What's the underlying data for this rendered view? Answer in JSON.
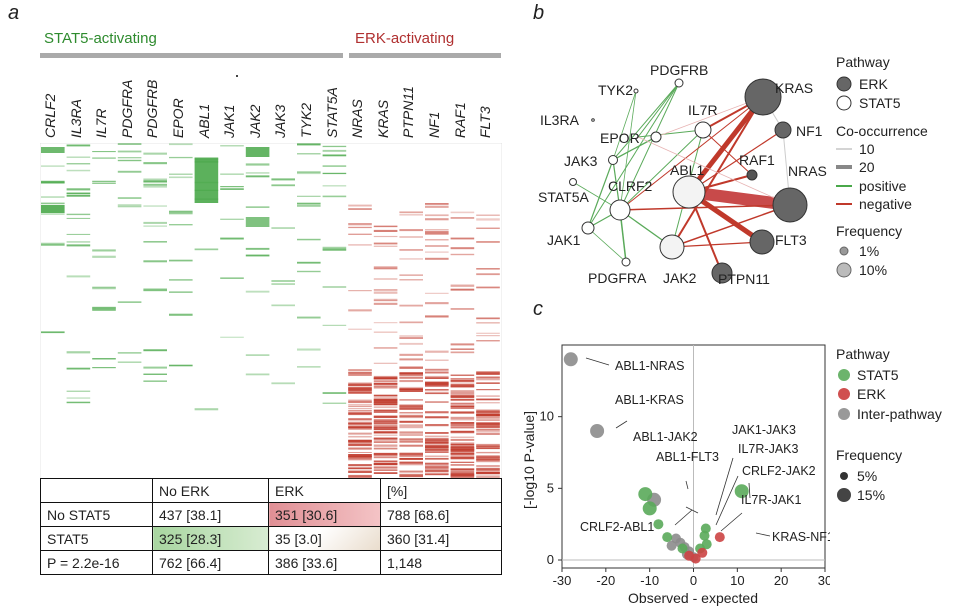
{
  "panel_a": {
    "letter": "a",
    "group_stat5": "STAT5-activating",
    "group_erk": "ERK-activating",
    "colors": {
      "stat5": "#4aa84a",
      "erk": "#c0392b",
      "gray": "#aaaaaa"
    },
    "genes": [
      "CRLF2",
      "IL3RA",
      "IL7R",
      "PDGFRA",
      "PDGFRB",
      "EPOR",
      "ABL1",
      "JAK1",
      "JAK2",
      "JAK3",
      "TYK2",
      "STAT5A",
      "NRAS",
      "KRAS",
      "PTPN11",
      "NF1",
      "RAF1",
      "FLT3"
    ],
    "table": {
      "header": [
        "",
        "No ERK",
        "ERK",
        "[%]"
      ],
      "rows": [
        [
          "No STAT5",
          "437 [38.1]",
          "351 [30.6]",
          "788 [68.6]"
        ],
        [
          "STAT5",
          "325 [28.3]",
          "35 [3.0]",
          "360 [31.4]"
        ],
        [
          "P = 2.2e-16",
          "762 [66.4]",
          "386 [33.6]",
          "1,148"
        ]
      ]
    }
  },
  "panel_b": {
    "letter": "b",
    "nodes": [
      "PDGFRB",
      "TYK2",
      "KRAS",
      "IL3RA",
      "IL7R",
      "NF1",
      "EPOR",
      "ABL1",
      "RAF1",
      "NRAS",
      "JAK3",
      "STAT5A",
      "CLRF2",
      "FLT3",
      "JAK1",
      "JAK2",
      "PDGFRA",
      "PTPN11"
    ],
    "legend": {
      "pathway_title": "Pathway",
      "pathway_items": [
        "ERK",
        "STAT5"
      ],
      "cooc_title": "Co-occurrence",
      "cooc_items": [
        "10",
        "20",
        "positive",
        "negative"
      ],
      "freq_title": "Frequency",
      "freq_items": [
        "1%",
        "10%"
      ]
    }
  },
  "panel_c": {
    "letter": "c",
    "labels": [
      "ABL1-NRAS",
      "ABL1-KRAS",
      "ABL1-JAK2",
      "ABL1-FLT3",
      "CRLF2-ABL1",
      "JAK1-JAK3",
      "IL7R-JAK3",
      "CRLF2-JAK2",
      "IL7R-JAK1",
      "KRAS-NF1"
    ],
    "legend": {
      "pathway_title": "Pathway",
      "pathway_items": [
        "STAT5",
        "ERK",
        "Inter-pathway"
      ],
      "freq_title": "Frequency",
      "freq_items": [
        "5%",
        "15%"
      ]
    }
  },
  "chart_data": {
    "type": "scatter",
    "xlabel": "Observed - expected",
    "ylabel": "[-log10 P-value]",
    "xlim": [
      -30,
      30
    ],
    "ylim": [
      0,
      14
    ],
    "xticks": [
      "-30",
      "-20",
      "-10",
      "0",
      "10",
      "20",
      "30"
    ],
    "yticks": [
      "0",
      "5",
      "10"
    ],
    "series": [
      {
        "name": "Inter-pathway",
        "color": "#8c8c8c",
        "points": [
          [
            -28,
            14
          ],
          [
            -22,
            9
          ],
          [
            -9,
            4.2
          ],
          [
            -4,
            1.5
          ],
          [
            -3,
            1.2
          ],
          [
            -2,
            0.9
          ],
          [
            -1,
            0.6
          ],
          [
            -5,
            1.0
          ],
          [
            -1.5,
            0.4
          ],
          [
            0,
            0.2
          ]
        ]
      },
      {
        "name": "STAT5",
        "color": "#5aaa5a",
        "points": [
          [
            -11,
            4.6
          ],
          [
            -10,
            3.6
          ],
          [
            -8,
            2.5
          ],
          [
            -6,
            1.6
          ],
          [
            2.8,
            2.2
          ],
          [
            2.5,
            1.7
          ],
          [
            11,
            4.8
          ],
          [
            3,
            1.1
          ],
          [
            1.5,
            0.8
          ],
          [
            -2.5,
            0.8
          ]
        ]
      },
      {
        "name": "ERK",
        "color": "#cc4444",
        "points": [
          [
            6,
            1.6
          ],
          [
            2,
            0.5
          ],
          [
            0.5,
            0.1
          ],
          [
            -1,
            0.3
          ]
        ]
      }
    ]
  }
}
